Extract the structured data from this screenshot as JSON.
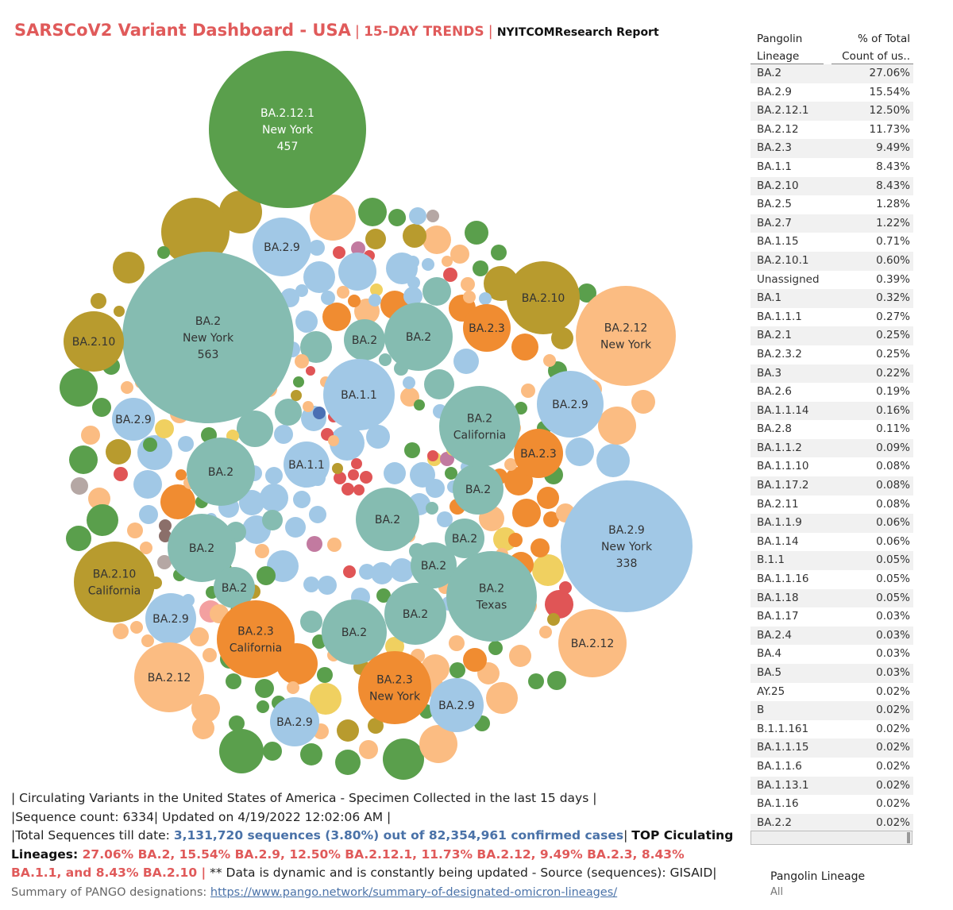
{
  "title": {
    "main": "SARSCoV2 Variant Dashboard - USA",
    "sep1": "|",
    "trend": "15-DAY TRENDS",
    "sep2": "|",
    "report": "NYITCOMResearch Report"
  },
  "colors": {
    "BA.2": "#85bcb1",
    "BA.1.1": "#a1c8e6",
    "BA.2.9": "#a1c8e6",
    "BA.2.12.1": "#5a9f4c",
    "BA.2.12": "#fbbc82",
    "BA.2.3": "#f08c31",
    "BA.2.10": "#b89b2e",
    "BA.2.5": "#f0d060",
    "red": "#e05556",
    "pink": "#f3a0a0",
    "brown": "#8b6f6a",
    "gray": "#b5a7a4",
    "blue": "#4a6fb3",
    "purple": "#c27aa0"
  },
  "chart_data": {
    "type": "bubble",
    "labeled_bubbles": [
      {
        "lineage": "BA.2.12.1",
        "state": "New York",
        "count": 457
      },
      {
        "lineage": "BA.2",
        "state": "New York",
        "count": 563
      },
      {
        "lineage": "BA.2.9",
        "state": "New York",
        "count": 338
      },
      {
        "lineage": "BA.2.12",
        "state": "New York",
        "count": null
      },
      {
        "lineage": "BA.2",
        "state": "California",
        "count": null
      },
      {
        "lineage": "BA.2",
        "state": "Texas",
        "count": null
      },
      {
        "lineage": "BA.2.10",
        "state": "California",
        "count": null
      },
      {
        "lineage": "BA.2.3",
        "state": "California",
        "count": null
      },
      {
        "lineage": "BA.2.3",
        "state": "New York",
        "count": null
      },
      {
        "lineage": "BA.2.10",
        "state": "",
        "count": null
      },
      {
        "lineage": "BA.2.9",
        "state": "",
        "count": null
      },
      {
        "lineage": "BA.1.1",
        "state": "",
        "count": null
      },
      {
        "lineage": "BA.2.3",
        "state": "",
        "count": null
      },
      {
        "lineage": "BA.2.12",
        "state": "",
        "count": null
      },
      {
        "lineage": "BA.2",
        "state": "",
        "count": null
      }
    ]
  },
  "table": {
    "header_left_1": "Pangolin",
    "header_left_2": "Lineage",
    "header_right_1": "% of Total",
    "header_right_2": "Count of us..",
    "rows": [
      {
        "lineage": "BA.2",
        "pct": "27.06%"
      },
      {
        "lineage": "BA.2.9",
        "pct": "15.54%"
      },
      {
        "lineage": "BA.2.12.1",
        "pct": "12.50%"
      },
      {
        "lineage": "BA.2.12",
        "pct": "11.73%"
      },
      {
        "lineage": "BA.2.3",
        "pct": "9.49%"
      },
      {
        "lineage": "BA.1.1",
        "pct": "8.43%"
      },
      {
        "lineage": "BA.2.10",
        "pct": "8.43%"
      },
      {
        "lineage": "BA.2.5",
        "pct": "1.28%"
      },
      {
        "lineage": "BA.2.7",
        "pct": "1.22%"
      },
      {
        "lineage": "BA.1.15",
        "pct": "0.71%"
      },
      {
        "lineage": "BA.2.10.1",
        "pct": "0.60%"
      },
      {
        "lineage": "Unassigned",
        "pct": "0.39%"
      },
      {
        "lineage": "BA.1",
        "pct": "0.32%"
      },
      {
        "lineage": "BA.1.1.1",
        "pct": "0.27%"
      },
      {
        "lineage": "BA.2.1",
        "pct": "0.25%"
      },
      {
        "lineage": "BA.2.3.2",
        "pct": "0.25%"
      },
      {
        "lineage": "BA.3",
        "pct": "0.22%"
      },
      {
        "lineage": "BA.2.6",
        "pct": "0.19%"
      },
      {
        "lineage": "BA.1.1.14",
        "pct": "0.16%"
      },
      {
        "lineage": "BA.2.8",
        "pct": "0.11%"
      },
      {
        "lineage": "BA.1.1.2",
        "pct": "0.09%"
      },
      {
        "lineage": "BA.1.1.10",
        "pct": "0.08%"
      },
      {
        "lineage": "BA.1.17.2",
        "pct": "0.08%"
      },
      {
        "lineage": "BA.2.11",
        "pct": "0.08%"
      },
      {
        "lineage": "BA.1.1.9",
        "pct": "0.06%"
      },
      {
        "lineage": "BA.1.14",
        "pct": "0.06%"
      },
      {
        "lineage": "B.1.1",
        "pct": "0.05%"
      },
      {
        "lineage": "BA.1.1.16",
        "pct": "0.05%"
      },
      {
        "lineage": "BA.1.18",
        "pct": "0.05%"
      },
      {
        "lineage": "BA.1.17",
        "pct": "0.03%"
      },
      {
        "lineage": "BA.2.4",
        "pct": "0.03%"
      },
      {
        "lineage": "BA.4",
        "pct": "0.03%"
      },
      {
        "lineage": "BA.5",
        "pct": "0.03%"
      },
      {
        "lineage": "AY.25",
        "pct": "0.02%"
      },
      {
        "lineage": "B",
        "pct": "0.02%"
      },
      {
        "lineage": "B.1.1.161",
        "pct": "0.02%"
      },
      {
        "lineage": "BA.1.1.15",
        "pct": "0.02%"
      },
      {
        "lineage": "BA.1.1.6",
        "pct": "0.02%"
      },
      {
        "lineage": "BA.1.13.1",
        "pct": "0.02%"
      },
      {
        "lineage": "BA.1.16",
        "pct": "0.02%"
      },
      {
        "lineage": "BA.2.2",
        "pct": "0.02%"
      }
    ]
  },
  "filter": {
    "label": "Pangolin Lineage",
    "value": "All"
  },
  "description": {
    "line1": "| Circulating Variants in the United States of America - Specimen Collected in the last 15 days |",
    "line2": "|Sequence count: 6334|  Updated on 4/19/2022 12:02:06 AM |",
    "line3_prefix": "|Total Sequences till date: ",
    "line3_blue": "3,131,720 sequences (3.80%) out of 82,354,961 confirmed cases",
    "line3_sep": "| ",
    "top_label": "TOP Ciculating Lineages: ",
    "top_values": "27.06% BA.2, 15.54% BA.2.9, 12.50% BA.2.12.1, 11.73% BA.2.12, 9.49% BA.2.3, 8.43% BA.1.1, and 8.43% BA.2.10 |",
    "data_note": " ** Data is dynamic and is constantly being updated - Source (sequences): GISAID| ",
    "summary_text": "Summary of PANGO designations: ",
    "link": "https://www.pango.network/summary-of-designated-omicron-lineages/"
  }
}
